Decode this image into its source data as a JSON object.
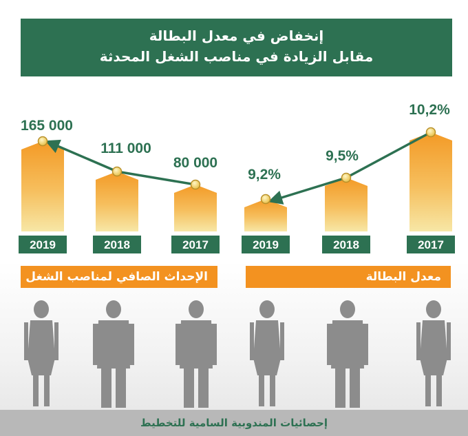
{
  "title": {
    "line1": "إنخفاض في معدل البطالة",
    "line2": "مقابل الزيادة في مناصب الشغل المحدثة"
  },
  "colors": {
    "green": "#2d7152",
    "orange": "#f39220",
    "gold": "#f0d97a",
    "gray": "#b8b8b8"
  },
  "chart_data": [
    {
      "type": "bar",
      "label": "الإحداث الصافي لمناصب الشغل",
      "categories": [
        "2019",
        "2018",
        "2017"
      ],
      "values": [
        165000,
        111000,
        80000
      ],
      "value_labels": [
        "165 000",
        "111 000",
        "80 000"
      ]
    },
    {
      "type": "bar",
      "label": "معدل البطالة",
      "categories": [
        "2019",
        "2018",
        "2017"
      ],
      "values": [
        9.2,
        9.5,
        10.2
      ],
      "value_labels": [
        "9,2%",
        "9,5%",
        "10,2%"
      ]
    }
  ],
  "footer": "إحصائيات المندوبية السامية للتخطيط",
  "figure_icons": [
    "woman-figure-icon",
    "man-figure-icon",
    "man-figure-icon",
    "woman-figure-icon",
    "man-figure-icon",
    "woman-figure-icon"
  ]
}
